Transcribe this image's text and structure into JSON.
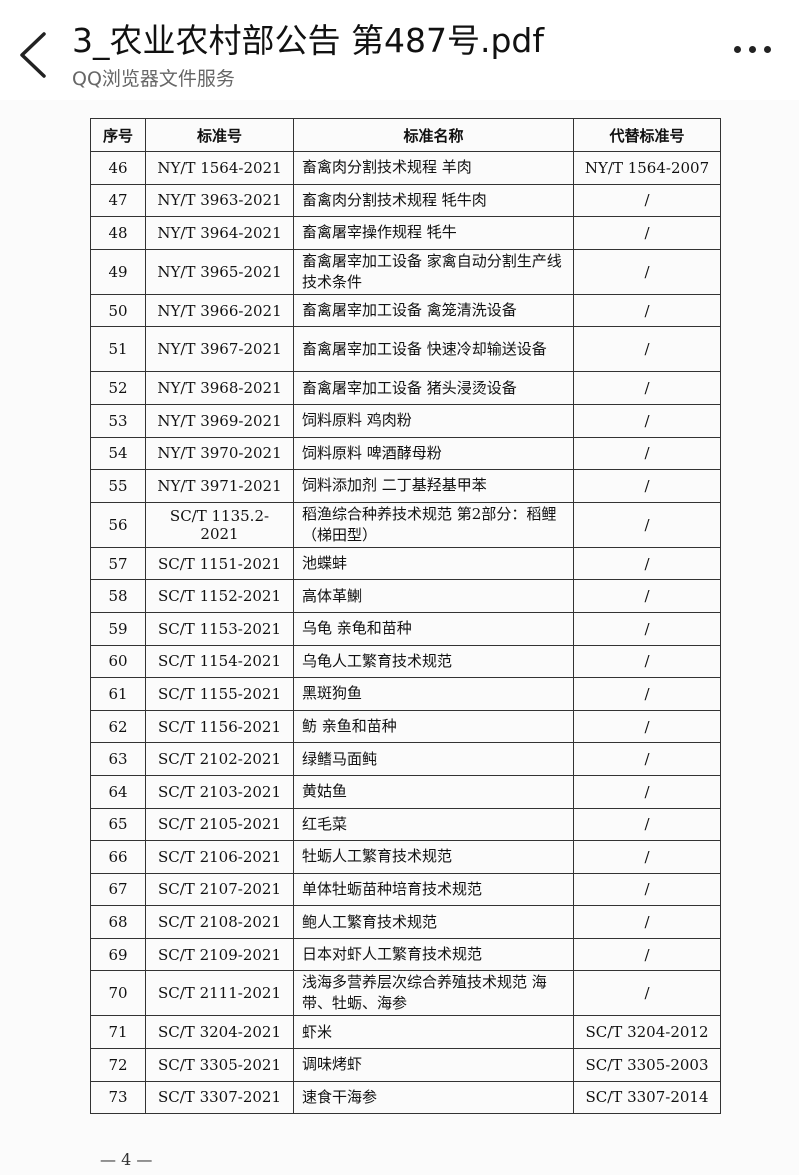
{
  "header": {
    "title": "3_农业农村部公告 第487号.pdf",
    "subtitle": "QQ浏览器文件服务"
  },
  "table": {
    "columns": [
      "序号",
      "标准号",
      "标准名称",
      "代替标准号"
    ],
    "rows": [
      {
        "no": "46",
        "code": "NY/T 1564-2021",
        "name": "畜禽肉分割技术规程 羊肉",
        "replace": "NY/T 1564-2007"
      },
      {
        "no": "47",
        "code": "NY/T 3963-2021",
        "name": "畜禽肉分割技术规程 牦牛肉",
        "replace": "/"
      },
      {
        "no": "48",
        "code": "NY/T 3964-2021",
        "name": "畜禽屠宰操作规程 牦牛",
        "replace": "/"
      },
      {
        "no": "49",
        "code": "NY/T 3965-2021",
        "name": "畜禽屠宰加工设备 家禽自动分割生产线技术条件",
        "replace": "/"
      },
      {
        "no": "50",
        "code": "NY/T 3966-2021",
        "name": "畜禽屠宰加工设备 禽笼清洗设备",
        "replace": "/"
      },
      {
        "no": "51",
        "code": "NY/T 3967-2021",
        "name": "畜禽屠宰加工设备 快速冷却输送设备",
        "replace": "/"
      },
      {
        "no": "52",
        "code": "NY/T 3968-2021",
        "name": "畜禽屠宰加工设备 猪头浸烫设备",
        "replace": "/"
      },
      {
        "no": "53",
        "code": "NY/T 3969-2021",
        "name": "饲料原料 鸡肉粉",
        "replace": "/"
      },
      {
        "no": "54",
        "code": "NY/T 3970-2021",
        "name": "饲料原料 啤酒酵母粉",
        "replace": "/"
      },
      {
        "no": "55",
        "code": "NY/T 3971-2021",
        "name": "饲料添加剂 二丁基羟基甲苯",
        "replace": "/"
      },
      {
        "no": "56",
        "code": "SC/T 1135.2-2021",
        "name": "稻渔综合种养技术规范 第2部分：稻鲤（梯田型）",
        "replace": "/"
      },
      {
        "no": "57",
        "code": "SC/T 1151-2021",
        "name": "池蝶蚌",
        "replace": "/"
      },
      {
        "no": "58",
        "code": "SC/T 1152-2021",
        "name": "高体革鯻",
        "replace": "/"
      },
      {
        "no": "59",
        "code": "SC/T 1153-2021",
        "name": "乌龟 亲龟和苗种",
        "replace": "/"
      },
      {
        "no": "60",
        "code": "SC/T 1154-2021",
        "name": "乌龟人工繁育技术规范",
        "replace": "/"
      },
      {
        "no": "61",
        "code": "SC/T 1155-2021",
        "name": "黑斑狗鱼",
        "replace": "/"
      },
      {
        "no": "62",
        "code": "SC/T 1156-2021",
        "name": "鲂 亲鱼和苗种",
        "replace": "/"
      },
      {
        "no": "63",
        "code": "SC/T 2102-2021",
        "name": "绿鳍马面鲀",
        "replace": "/"
      },
      {
        "no": "64",
        "code": "SC/T 2103-2021",
        "name": "黄姑鱼",
        "replace": "/"
      },
      {
        "no": "65",
        "code": "SC/T 2105-2021",
        "name": "红毛菜",
        "replace": "/"
      },
      {
        "no": "66",
        "code": "SC/T 2106-2021",
        "name": "牡蛎人工繁育技术规范",
        "replace": "/"
      },
      {
        "no": "67",
        "code": "SC/T 2107-2021",
        "name": "单体牡蛎苗种培育技术规范",
        "replace": "/"
      },
      {
        "no": "68",
        "code": "SC/T 2108-2021",
        "name": "鲍人工繁育技术规范",
        "replace": "/"
      },
      {
        "no": "69",
        "code": "SC/T 2109-2021",
        "name": "日本对虾人工繁育技术规范",
        "replace": "/"
      },
      {
        "no": "70",
        "code": "SC/T 2111-2021",
        "name": "浅海多营养层次综合养殖技术规范 海带、牡蛎、海参",
        "replace": "/"
      },
      {
        "no": "71",
        "code": "SC/T 3204-2021",
        "name": "虾米",
        "replace": "SC/T 3204-2012"
      },
      {
        "no": "72",
        "code": "SC/T 3305-2021",
        "name": "调味烤虾",
        "replace": "SC/T 3305-2003"
      },
      {
        "no": "73",
        "code": "SC/T 3307-2021",
        "name": "速食干海参",
        "replace": "SC/T 3307-2014"
      }
    ]
  },
  "footer": {
    "page": "— 4 —"
  }
}
